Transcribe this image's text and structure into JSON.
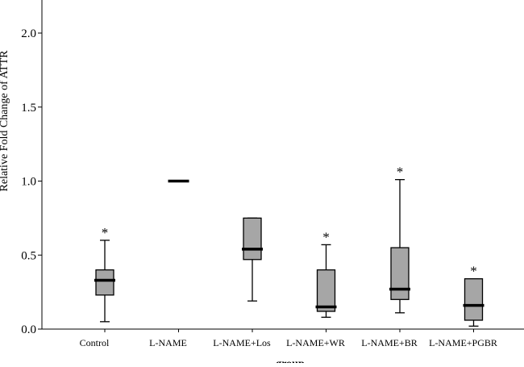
{
  "chart_data": {
    "type": "box",
    "xlabel": "group",
    "ylabel": "Relative Fold Change of ATTR",
    "ylim": [
      0,
      2.2
    ],
    "yticks": [
      0.0,
      0.5,
      1.0,
      1.5,
      2.0
    ],
    "ytick_labels": [
      "0.0",
      "0.5",
      "1.0",
      "1.5",
      "2.0"
    ],
    "box_color": "#a6a6a6",
    "grid": false,
    "categories": [
      "Control",
      "L-NAME",
      "L-NAME+Los",
      "L-NAME+WR",
      "L-NAME+BR",
      "L-NAME+PGBR"
    ],
    "boxes": [
      {
        "category": "Control",
        "whisker_low": 0.05,
        "q1": 0.23,
        "median": 0.33,
        "q3": 0.4,
        "whisker_high": 0.6,
        "annotation": "*"
      },
      {
        "category": "L-NAME",
        "whisker_low": 1.0,
        "q1": 1.0,
        "median": 1.0,
        "q3": 1.0,
        "whisker_high": 1.0,
        "annotation": ""
      },
      {
        "category": "L-NAME+Los",
        "whisker_low": 0.19,
        "q1": 0.47,
        "median": 0.54,
        "q3": 0.75,
        "whisker_high": 0.75,
        "annotation": ""
      },
      {
        "category": "L-NAME+WR",
        "whisker_low": 0.08,
        "q1": 0.12,
        "median": 0.15,
        "q3": 0.4,
        "whisker_high": 0.57,
        "annotation": "*"
      },
      {
        "category": "L-NAME+BR",
        "whisker_low": 0.11,
        "q1": 0.2,
        "median": 0.27,
        "q3": 0.55,
        "whisker_high": 1.01,
        "annotation": "*"
      },
      {
        "category": "L-NAME+PGBR",
        "whisker_low": 0.02,
        "q1": 0.06,
        "median": 0.16,
        "q3": 0.34,
        "whisker_high": 0.34,
        "annotation": "*"
      }
    ]
  }
}
